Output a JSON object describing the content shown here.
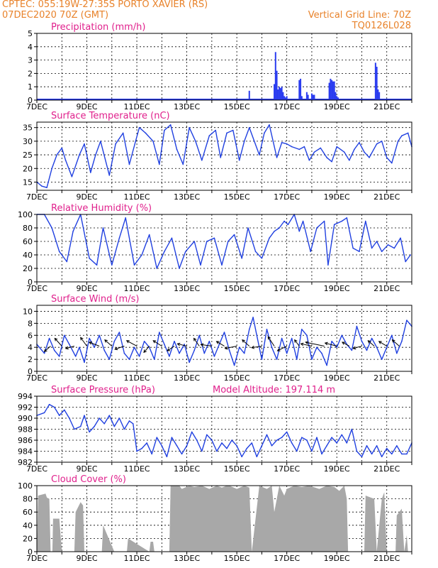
{
  "header": {
    "station": "CPTEC:  055:19W-27:35S  PORTO XAVIER (RS)",
    "date": "07DEC2020 70Z (GMT)",
    "grid_note": "Vertical Grid Line: 70Z",
    "code": "TQ0126L028",
    "color": "#e8822a"
  },
  "colors": {
    "title": "#e0208c",
    "line": "#2040e0",
    "bar": "#2a3cf0",
    "fill": "#a8a8a8",
    "frame": "#000000"
  },
  "x_ticks": [
    "7DEC",
    "9DEC",
    "11DEC",
    "13DEC",
    "15DEC",
    "17DEC",
    "19DEC",
    "21DEC"
  ],
  "chart_data": [
    {
      "type": "bar",
      "title": "Precipitation (mm/h)",
      "ylim": [
        0,
        5
      ],
      "yticks": [
        0,
        1,
        2,
        3,
        4,
        5
      ],
      "x": [
        15.2,
        15.5,
        16.1,
        16.5,
        16.55,
        16.6,
        16.65,
        16.7,
        16.75,
        16.8,
        16.85,
        16.9,
        16.95,
        17.0,
        17.5,
        17.55,
        17.6,
        17.8,
        17.85,
        18.0,
        18.05,
        18.1,
        18.7,
        18.75,
        18.8,
        18.85,
        18.9,
        18.95,
        19.0,
        19.05,
        20.55,
        20.6,
        20.65,
        20.7
      ],
      "values": [
        0.1,
        0.7,
        0.1,
        1.2,
        3.6,
        2.2,
        0.8,
        1.0,
        0.9,
        1.0,
        0.6,
        0.3,
        0.2,
        0.3,
        1.5,
        1.6,
        0.3,
        0.6,
        0.4,
        0.5,
        0.4,
        0.4,
        1.3,
        1.6,
        1.5,
        1.4,
        1.4,
        0.6,
        0.3,
        0.2,
        2.8,
        2.5,
        0.8,
        0.6
      ]
    },
    {
      "type": "line",
      "title": "Surface Temperature (nC)",
      "ylim": [
        12,
        37
      ],
      "yticks": [
        15,
        20,
        25,
        30,
        35
      ],
      "x": [
        7.0,
        7.2,
        7.4,
        7.6,
        7.8,
        8.0,
        8.15,
        8.4,
        8.7,
        8.9,
        9.15,
        9.35,
        9.55,
        9.9,
        10.15,
        10.45,
        10.7,
        10.95,
        11.1,
        11.35,
        11.65,
        11.9,
        12.1,
        12.35,
        12.6,
        12.85,
        13.1,
        13.35,
        13.6,
        13.9,
        14.15,
        14.35,
        14.6,
        14.85,
        15.1,
        15.3,
        15.5,
        15.7,
        15.9,
        16.1,
        16.3,
        16.6,
        16.8,
        17.0,
        17.2,
        17.5,
        17.7,
        17.9,
        18.1,
        18.35,
        18.6,
        18.8,
        19.0,
        19.3,
        19.5,
        19.7,
        19.9,
        20.1,
        20.3,
        20.6,
        20.8,
        21.0,
        21.2,
        21.45,
        21.6,
        21.85,
        22.0
      ],
      "values": [
        15,
        13.5,
        13,
        20,
        25,
        27.5,
        23,
        17,
        25,
        29,
        18.5,
        25,
        30,
        17.5,
        29,
        33,
        21.5,
        30,
        35,
        33,
        30,
        21.5,
        34,
        36,
        27,
        21.5,
        35,
        30,
        23,
        32,
        34,
        24,
        33,
        34,
        23,
        30,
        35,
        30,
        25,
        33,
        36,
        24,
        29.5,
        29,
        28,
        27,
        28,
        23,
        26,
        27.5,
        24,
        22.5,
        28,
        26,
        23,
        27,
        29.5,
        26,
        24,
        29,
        30,
        24,
        22,
        30,
        32,
        33,
        28
      ]
    },
    {
      "type": "line",
      "title": "Relative Humidity (%)",
      "ylim": [
        0,
        100
      ],
      "yticks": [
        0,
        20,
        40,
        60,
        80,
        100
      ],
      "x": [
        7.0,
        7.3,
        7.6,
        7.9,
        8.2,
        8.45,
        8.75,
        9.1,
        9.4,
        9.65,
        10.0,
        10.3,
        10.55,
        10.9,
        11.2,
        11.5,
        11.8,
        12.1,
        12.4,
        12.7,
        12.95,
        13.3,
        13.55,
        13.8,
        14.1,
        14.4,
        14.65,
        14.9,
        15.2,
        15.45,
        15.75,
        16.0,
        16.3,
        16.5,
        16.7,
        16.9,
        17.05,
        17.3,
        17.5,
        17.65,
        17.95,
        18.2,
        18.5,
        18.65,
        18.9,
        19.2,
        19.4,
        19.65,
        19.9,
        20.15,
        20.4,
        20.6,
        20.8,
        21.05,
        21.3,
        21.55,
        21.75,
        21.95
      ],
      "values": [
        100,
        100,
        80,
        45,
        30,
        75,
        100,
        35,
        25,
        80,
        25,
        65,
        95,
        25,
        40,
        70,
        20,
        45,
        65,
        20,
        45,
        60,
        25,
        60,
        65,
        25,
        60,
        70,
        35,
        80,
        45,
        35,
        65,
        75,
        80,
        90,
        85,
        100,
        75,
        90,
        45,
        80,
        90,
        25,
        85,
        90,
        95,
        50,
        45,
        90,
        50,
        60,
        45,
        55,
        50,
        65,
        30,
        40
      ]
    },
    {
      "type": "line",
      "title": "Surface Wind (m/s)",
      "ylim": [
        0,
        11
      ],
      "yticks": [
        0,
        2,
        4,
        6,
        8,
        10
      ],
      "x": [
        7.0,
        7.3,
        7.5,
        7.7,
        7.9,
        8.1,
        8.3,
        8.55,
        8.7,
        8.9,
        9.1,
        9.3,
        9.5,
        9.7,
        9.9,
        10.1,
        10.3,
        10.5,
        10.7,
        10.9,
        11.1,
        11.3,
        11.5,
        11.7,
        11.9,
        12.1,
        12.3,
        12.5,
        12.7,
        12.9,
        13.1,
        13.3,
        13.5,
        13.7,
        13.9,
        14.1,
        14.3,
        14.5,
        14.7,
        14.9,
        15.1,
        15.3,
        15.5,
        15.65,
        15.8,
        16.0,
        16.2,
        16.4,
        16.6,
        16.8,
        17.0,
        17.2,
        17.4,
        17.6,
        17.8,
        18.0,
        18.2,
        18.4,
        18.6,
        18.8,
        19.0,
        19.2,
        19.4,
        19.6,
        19.8,
        20.0,
        20.2,
        20.4,
        20.6,
        20.8,
        21.0,
        21.2,
        21.4,
        21.6,
        21.8,
        22.0
      ],
      "values": [
        4.5,
        3.0,
        5.5,
        3.5,
        2.5,
        6.0,
        4.5,
        2.5,
        4.0,
        1.5,
        5.5,
        4.0,
        6.0,
        3.5,
        2.0,
        5.0,
        6.5,
        3.0,
        2.0,
        4.0,
        2.5,
        5.0,
        4.0,
        2.0,
        6.5,
        4.5,
        2.5,
        5.0,
        3.0,
        4.5,
        1.5,
        3.5,
        6.0,
        3.0,
        5.0,
        2.5,
        4.5,
        6.5,
        3.5,
        1.0,
        4.0,
        3.0,
        7.0,
        9.0,
        6.0,
        2.0,
        7.0,
        4.0,
        2.0,
        5.5,
        3.0,
        5.5,
        2.0,
        7.0,
        6.0,
        2.0,
        4.0,
        3.0,
        1.0,
        5.0,
        4.0,
        6.0,
        4.5,
        3.5,
        7.5,
        5.0,
        3.5,
        5.5,
        4.0,
        2.0,
        4.0,
        6.0,
        3.0,
        5.0,
        8.5,
        7.5
      ]
    },
    {
      "type": "line",
      "title": "Surface Pressure (hPa)",
      "annotation": "Model Altitude: 197.114 m",
      "ylim": [
        982,
        994
      ],
      "yticks": [
        982,
        984,
        986,
        988,
        990,
        992,
        994
      ],
      "x": [
        7.0,
        7.3,
        7.5,
        7.7,
        7.9,
        8.1,
        8.3,
        8.5,
        8.75,
        8.9,
        9.1,
        9.3,
        9.5,
        9.7,
        9.9,
        10.1,
        10.3,
        10.5,
        10.7,
        10.85,
        11.0,
        11.2,
        11.4,
        11.6,
        11.8,
        12.0,
        12.2,
        12.4,
        12.6,
        12.8,
        13.0,
        13.2,
        13.4,
        13.6,
        13.8,
        14.0,
        14.2,
        14.4,
        14.6,
        14.8,
        15.0,
        15.2,
        15.4,
        15.6,
        15.8,
        16.0,
        16.2,
        16.4,
        16.6,
        16.8,
        17.0,
        17.2,
        17.4,
        17.6,
        17.8,
        18.0,
        18.2,
        18.4,
        18.6,
        18.8,
        19.0,
        19.2,
        19.4,
        19.6,
        19.8,
        20.0,
        20.2,
        20.4,
        20.6,
        20.8,
        21.0,
        21.2,
        21.4,
        21.6,
        21.8,
        22.0
      ],
      "values": [
        990.5,
        991.0,
        992.5,
        992.0,
        990.5,
        991.5,
        990.0,
        988.0,
        988.5,
        990.5,
        987.5,
        988.5,
        990.0,
        989.0,
        990.5,
        988.5,
        990.0,
        988.0,
        989.5,
        989.0,
        984.0,
        984.5,
        985.5,
        983.5,
        986.5,
        985.0,
        983.0,
        986.5,
        985.0,
        983.5,
        985.0,
        987.5,
        986.0,
        984.0,
        987.0,
        986.0,
        984.0,
        985.5,
        984.5,
        986.0,
        985.0,
        983.0,
        984.5,
        985.5,
        983.0,
        985.0,
        987.0,
        985.0,
        986.0,
        986.5,
        987.5,
        985.5,
        984.0,
        986.5,
        986.0,
        984.0,
        986.5,
        983.5,
        985.0,
        986.5,
        985.5,
        987.0,
        985.5,
        988.0,
        984.0,
        983.0,
        985.0,
        983.5,
        985.0,
        983.0,
        984.5,
        983.5,
        985.0,
        983.5,
        983.5,
        985.5
      ]
    },
    {
      "type": "area",
      "title": "Cloud Cover (%)",
      "ylim": [
        0,
        100
      ],
      "yticks": [
        0,
        20,
        40,
        60,
        80,
        100
      ],
      "x": [
        7.0,
        7.05,
        7.35,
        7.4,
        7.5,
        7.55,
        7.62,
        7.65,
        7.9,
        8.0,
        8.5,
        8.55,
        8.75,
        8.85,
        8.9,
        9.1,
        9.6,
        9.65,
        10.1,
        10.15,
        10.6,
        10.65,
        11.5,
        11.55,
        11.65,
        11.7,
        12.3,
        12.35,
        12.7,
        12.8,
        13.1,
        13.3,
        13.6,
        13.9,
        14.2,
        14.4,
        14.6,
        14.7,
        15.0,
        15.3,
        15.5,
        15.6,
        15.9,
        16.2,
        16.4,
        16.5,
        16.7,
        16.9,
        17.0,
        17.3,
        17.6,
        17.9,
        18.3,
        18.6,
        18.9,
        19.1,
        19.3,
        19.4,
        19.45,
        19.6,
        20.1,
        20.15,
        20.5,
        20.6,
        20.8,
        20.9,
        21.0,
        21.1,
        21.35,
        21.4,
        21.6,
        21.7,
        21.8,
        21.85,
        22.0
      ],
      "values": [
        0,
        85,
        88,
        82,
        80,
        0,
        0,
        50,
        50,
        0,
        0,
        60,
        75,
        70,
        0,
        0,
        0,
        40,
        0,
        0,
        0,
        20,
        0,
        15,
        15,
        0,
        0,
        100,
        100,
        95,
        100,
        98,
        100,
        95,
        100,
        97,
        100,
        100,
        95,
        100,
        97,
        0,
        100,
        95,
        100,
        60,
        100,
        85,
        95,
        100,
        98,
        100,
        95,
        100,
        98,
        92,
        100,
        80,
        0,
        0,
        0,
        85,
        80,
        0,
        80,
        90,
        0,
        0,
        0,
        55,
        65,
        0,
        25,
        0,
        0
      ]
    }
  ],
  "wind_arrows": [
    {
      "x": 7.55,
      "u": -0.8,
      "v": -0.7
    },
    {
      "x": 8.0,
      "u": -0.9,
      "v": 1.0
    },
    {
      "x": 8.5,
      "u": -1.1,
      "v": -0.3
    },
    {
      "x": 9.0,
      "u": -0.8,
      "v": 1.1
    },
    {
      "x": 9.5,
      "u": -1.3,
      "v": 0.5
    },
    {
      "x": 10.0,
      "u": -0.9,
      "v": 0.8
    },
    {
      "x": 10.5,
      "u": -1.2,
      "v": -0.4
    },
    {
      "x": 11.0,
      "u": -1.3,
      "v": 0.7
    },
    {
      "x": 11.5,
      "u": -0.7,
      "v": -0.8
    },
    {
      "x": 12.0,
      "u": -1.1,
      "v": 0.7
    },
    {
      "x": 12.5,
      "u": -0.9,
      "v": -0.6
    },
    {
      "x": 13.0,
      "u": -1.2,
      "v": 0.3
    },
    {
      "x": 13.5,
      "u": -0.7,
      "v": 1.0
    },
    {
      "x": 14.0,
      "u": -1.4,
      "v": 0.2
    },
    {
      "x": 14.5,
      "u": -1.0,
      "v": 0.6
    },
    {
      "x": 15.0,
      "u": -1.5,
      "v": -0.3
    },
    {
      "x": 15.5,
      "u": -0.9,
      "v": 0.8
    },
    {
      "x": 16.0,
      "u": -1.3,
      "v": -0.2
    },
    {
      "x": 16.5,
      "u": -0.8,
      "v": 1.2
    },
    {
      "x": 17.0,
      "u": -1.2,
      "v": -0.6
    },
    {
      "x": 17.5,
      "u": -0.6,
      "v": 0.8
    },
    {
      "x": 18.0,
      "u": -1.4,
      "v": 0.3
    },
    {
      "x": 18.5,
      "u": -2.4,
      "v": 0.5
    },
    {
      "x": 19.0,
      "u": -1.5,
      "v": 0.4
    },
    {
      "x": 19.5,
      "u": -0.9,
      "v": 0.5
    },
    {
      "x": 20.0,
      "u": -1.1,
      "v": -0.3
    },
    {
      "x": 20.5,
      "u": -0.8,
      "v": 0.7
    },
    {
      "x": 21.0,
      "u": -1.0,
      "v": 0.6
    },
    {
      "x": 21.5,
      "u": -0.9,
      "v": 0.8
    }
  ]
}
